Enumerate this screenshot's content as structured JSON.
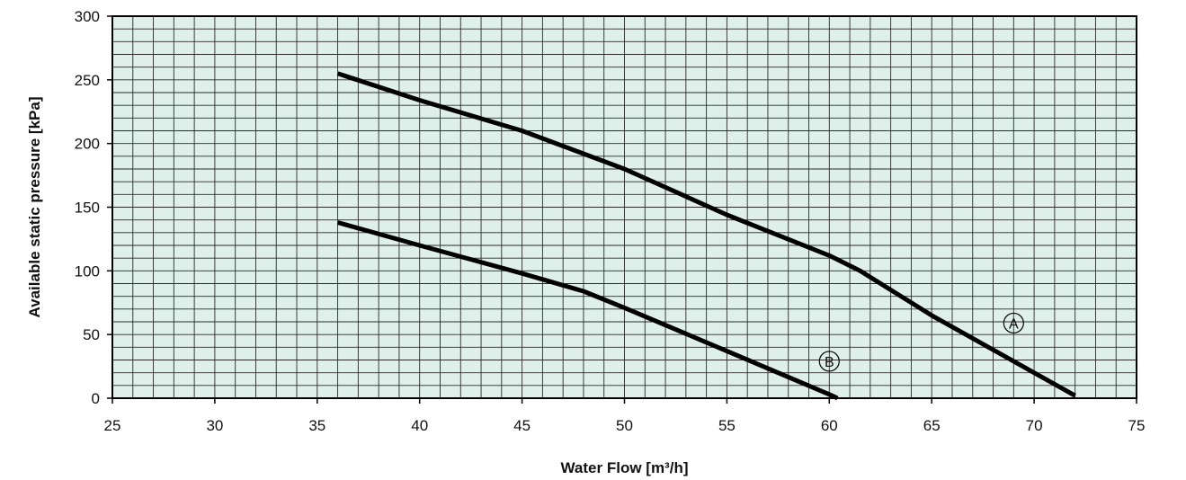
{
  "chart_data": {
    "type": "line",
    "title": "",
    "xlabel": "Water Flow [m³/h]",
    "ylabel": "Available static pressure [kPa]",
    "xlim": [
      25,
      75
    ],
    "ylim": [
      0,
      300
    ],
    "x_ticks": [
      25,
      30,
      35,
      40,
      45,
      50,
      55,
      60,
      65,
      70,
      75
    ],
    "y_ticks": [
      0,
      50,
      100,
      150,
      200,
      250,
      300
    ],
    "x_tick_labels": [
      "25",
      "30",
      "35",
      "40",
      "45",
      "50",
      "55",
      "60",
      "65",
      "70",
      "75"
    ],
    "y_tick_labels": [
      "0",
      "50",
      "100",
      "150",
      "200",
      "250",
      "300"
    ],
    "grid": true,
    "minor_grid_x_step": 1,
    "minor_grid_y_step": 10,
    "plot_background": "#dff0ea",
    "grid_color": "#2a2a2a",
    "line_color": "#000000",
    "series": [
      {
        "name": "A",
        "points": [
          [
            36,
            255
          ],
          [
            40,
            234
          ],
          [
            45,
            210
          ],
          [
            50,
            180
          ],
          [
            55,
            144
          ],
          [
            60,
            112
          ],
          [
            61.5,
            100
          ],
          [
            65,
            65
          ],
          [
            70,
            20
          ],
          [
            72,
            2
          ]
        ]
      },
      {
        "name": "B",
        "points": [
          [
            36,
            138
          ],
          [
            40,
            120
          ],
          [
            45,
            98
          ],
          [
            48,
            84
          ],
          [
            50,
            71
          ],
          [
            55,
            37
          ],
          [
            60,
            3
          ],
          [
            60.4,
            0
          ]
        ]
      }
    ],
    "annotations": [
      {
        "text": "A",
        "x": 69,
        "y": 59
      },
      {
        "text": "B",
        "x": 60,
        "y": 29
      }
    ]
  }
}
